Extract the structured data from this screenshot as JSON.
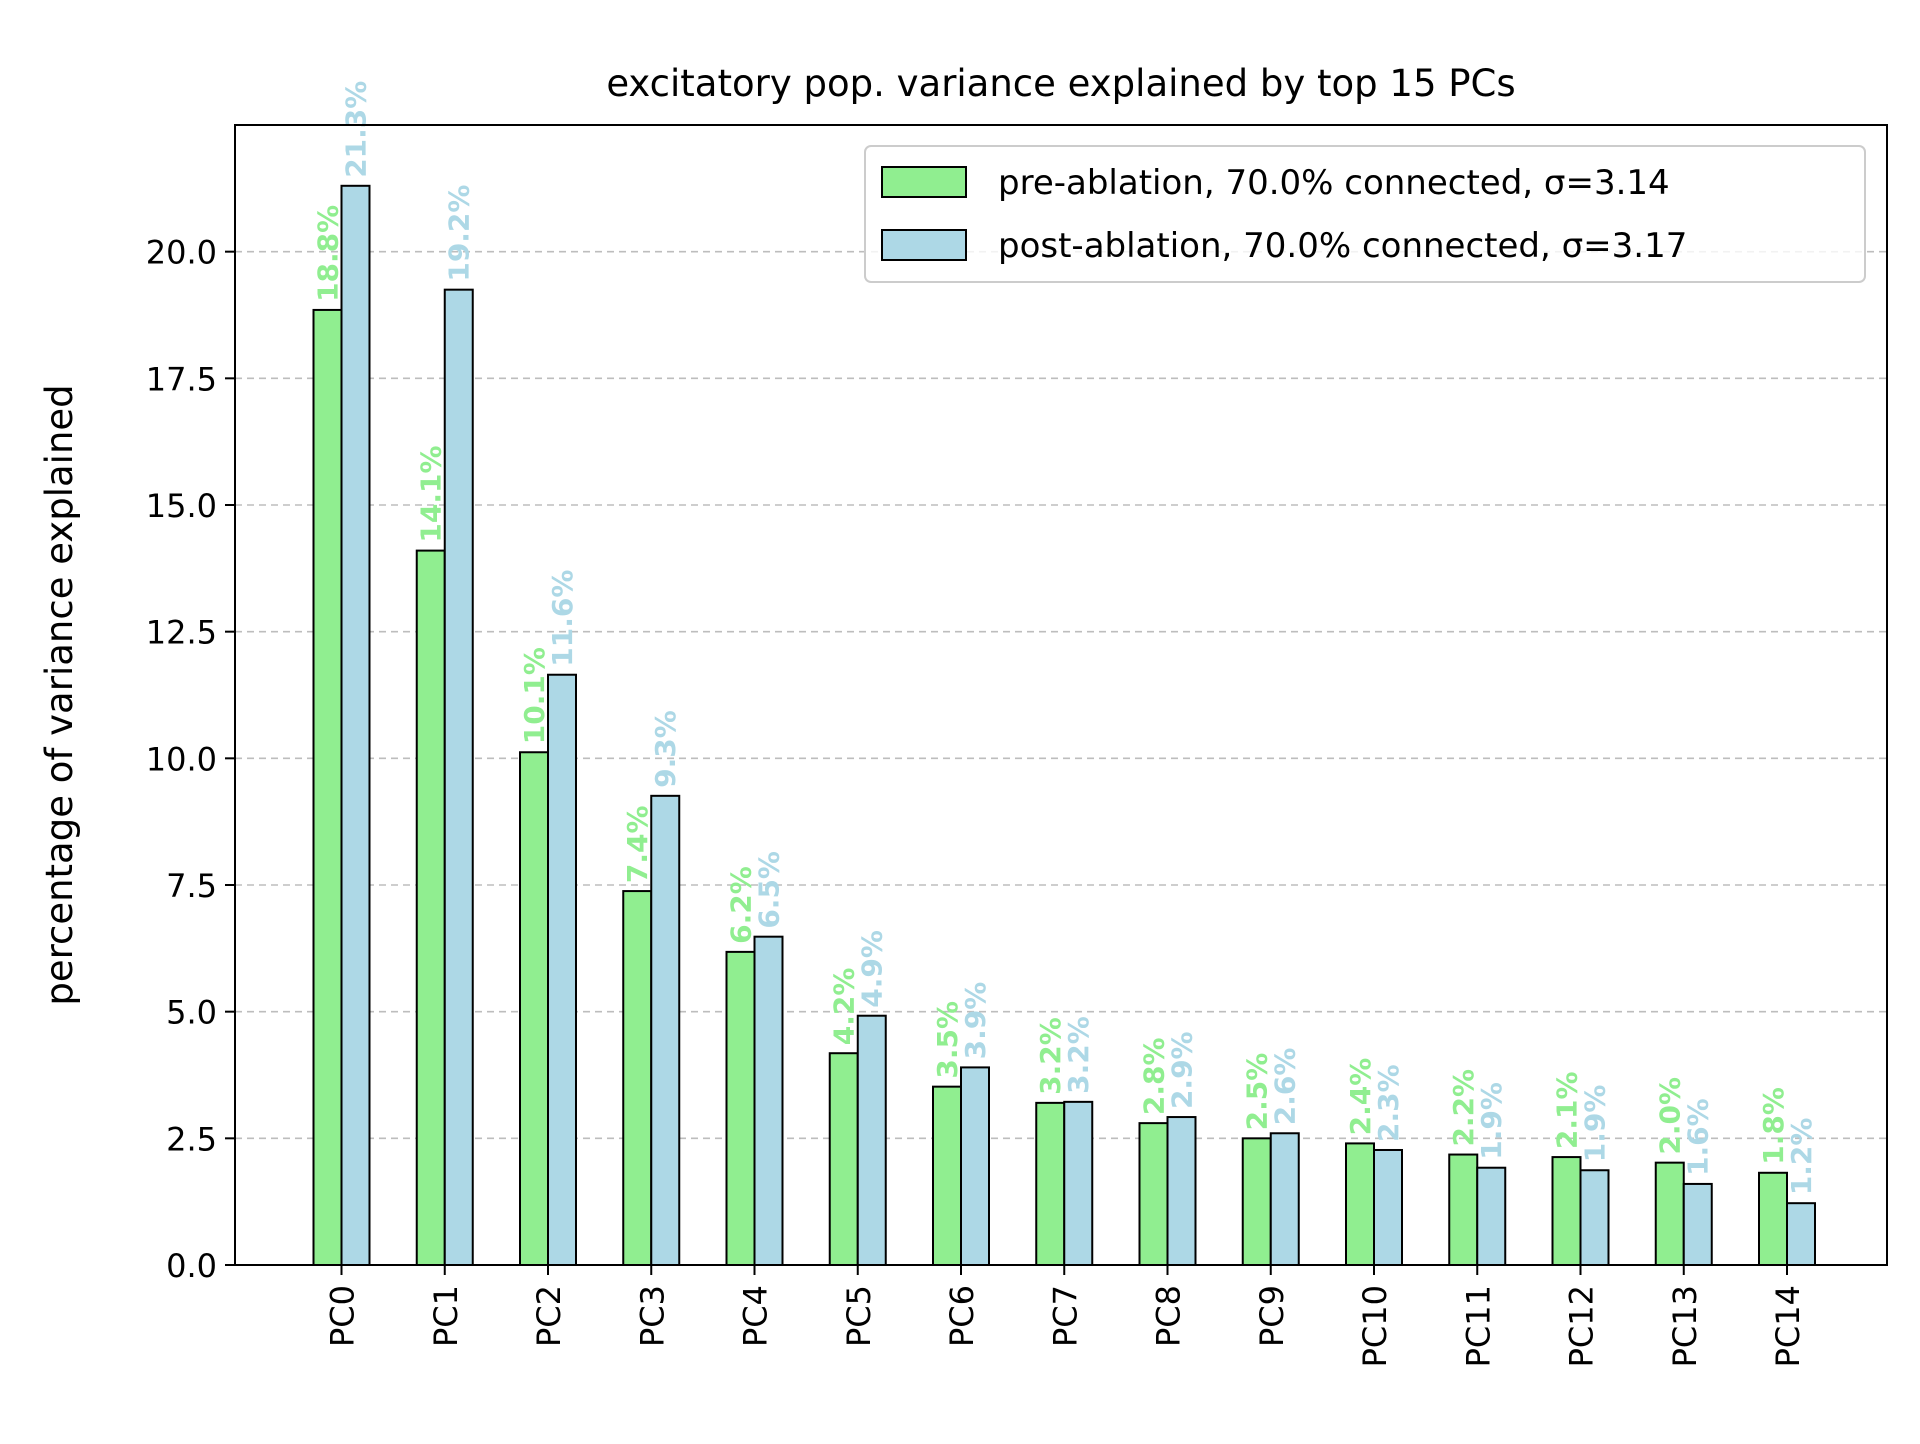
{
  "chart_data": {
    "type": "bar",
    "title": "excitatory pop. variance explained by top 15 PCs",
    "xlabel": "",
    "ylabel": "percentage of variance explained",
    "categories": [
      "PC0",
      "PC1",
      "PC2",
      "PC3",
      "PC4",
      "PC5",
      "PC6",
      "PC7",
      "PC8",
      "PC9",
      "PC10",
      "PC11",
      "PC12",
      "PC13",
      "PC14"
    ],
    "series": [
      {
        "name": "pre-ablation, 70.0% connected, σ=3.14",
        "color": "#90ee90",
        "values": [
          18.85,
          14.1,
          10.12,
          7.38,
          6.18,
          4.18,
          3.52,
          3.2,
          2.8,
          2.5,
          2.4,
          2.18,
          2.13,
          2.02,
          1.82
        ],
        "labels": [
          "18.8%",
          "14.1%",
          "10.1%",
          "7.4%",
          "6.2%",
          "4.2%",
          "3.5%",
          "3.2%",
          "2.8%",
          "2.5%",
          "2.4%",
          "2.2%",
          "2.1%",
          "2.0%",
          "1.8%"
        ]
      },
      {
        "name": "post-ablation, 70.0% connected, σ=3.17",
        "color": "#add8e6",
        "values": [
          21.3,
          19.25,
          11.65,
          9.26,
          6.48,
          4.92,
          3.9,
          3.22,
          2.92,
          2.6,
          2.27,
          1.92,
          1.87,
          1.6,
          1.22
        ],
        "labels": [
          "21.3%",
          "19.2%",
          "11.6%",
          "9.3%",
          "6.5%",
          "4.9%",
          "3.9%",
          "3.2%",
          "2.9%",
          "2.6%",
          "2.3%",
          "1.9%",
          "1.9%",
          "1.6%",
          "1.2%"
        ]
      }
    ],
    "ylim": [
      0,
      22.5
    ],
    "yticks": [
      "0.0",
      "2.5",
      "5.0",
      "7.5",
      "10.0",
      "12.5",
      "15.0",
      "17.5",
      "20.0"
    ],
    "grid": "horizontal dashed",
    "legend_position": "top-right"
  }
}
